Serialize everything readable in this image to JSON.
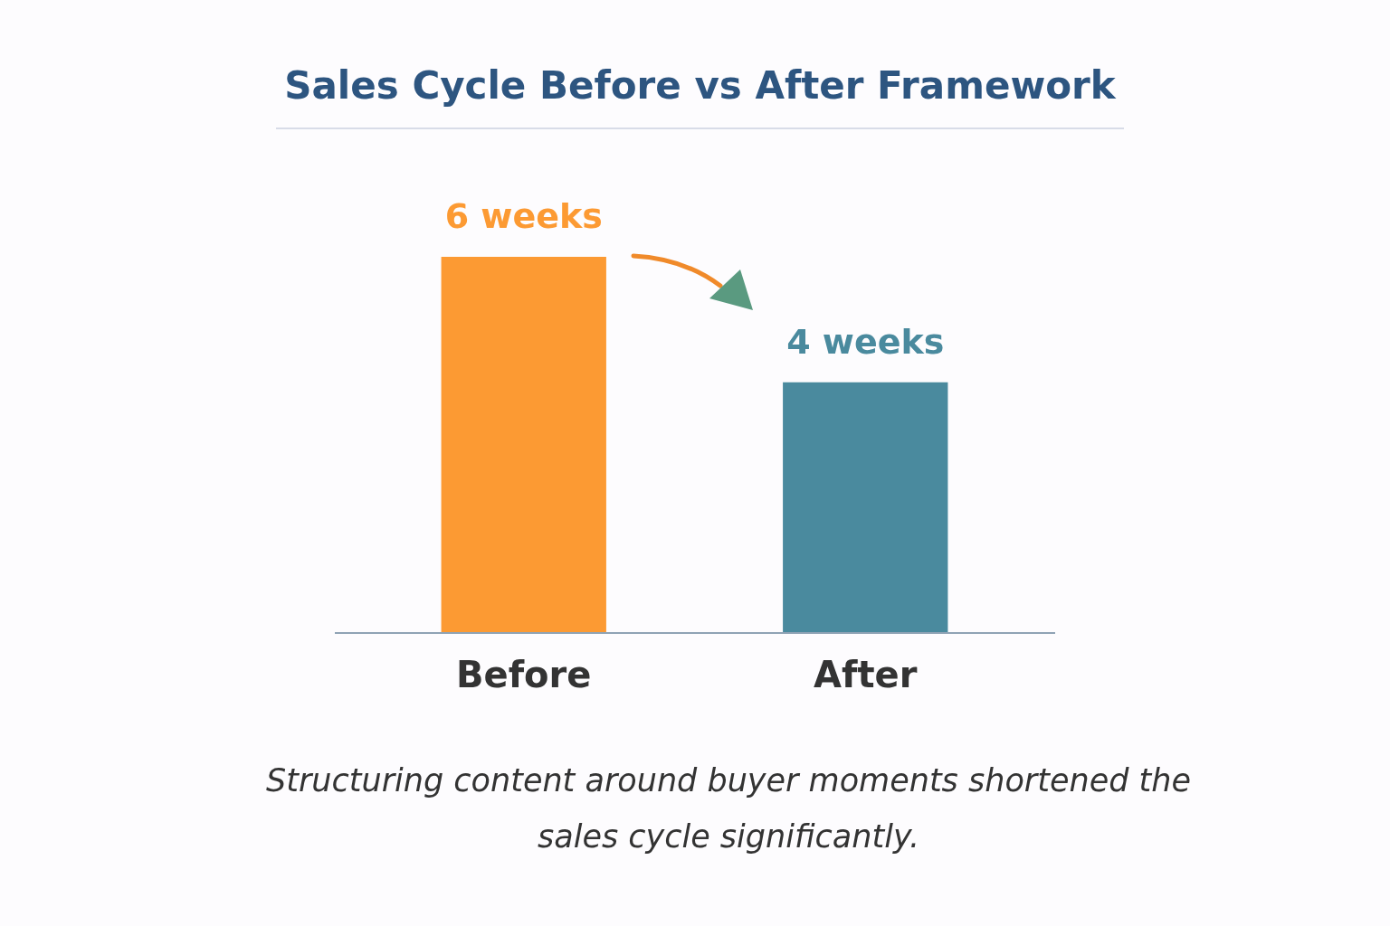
{
  "chart_data": {
    "type": "bar",
    "title": "Sales Cycle Before vs After Framework",
    "categories": [
      "Before",
      "After"
    ],
    "values": [
      6,
      4
    ],
    "value_labels": [
      "6 weeks",
      "4 weeks"
    ],
    "colors": [
      "#fc9a33",
      "#4a8a9e"
    ],
    "annotations": [
      "Structuring content around buyer moments shortened the sales cycle significantly."
    ],
    "legend": false,
    "grid": false
  }
}
